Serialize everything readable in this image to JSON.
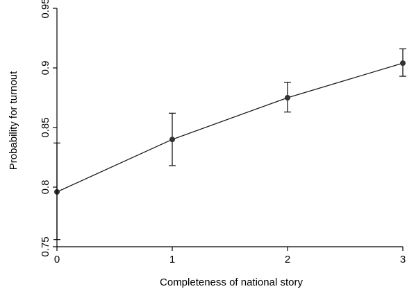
{
  "chart_data": {
    "type": "line",
    "title": "",
    "xlabel": "Completeness of national story",
    "ylabel": "Probability for turnout",
    "x": [
      0,
      1,
      2,
      3
    ],
    "x_ticks": [
      "0",
      "1",
      "2",
      "3"
    ],
    "y_ticks": [
      "0.75",
      "0.8",
      "0.85",
      "0.9",
      "0.95"
    ],
    "xlim": [
      0,
      3
    ],
    "ylim": [
      0.75,
      0.95
    ],
    "grid": false,
    "series": [
      {
        "values": [
          0.796,
          0.84,
          0.875,
          0.904
        ],
        "ci_low": [
          0.756,
          0.818,
          0.863,
          0.893
        ],
        "ci_high": [
          0.837,
          0.862,
          0.888,
          0.916
        ]
      }
    ],
    "colors": {
      "line": "#1a1a1a",
      "marker": "#333333"
    }
  }
}
